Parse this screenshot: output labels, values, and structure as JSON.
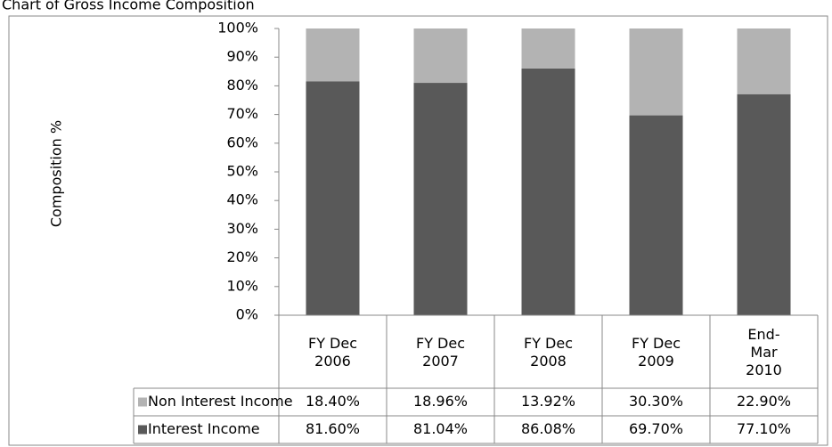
{
  "chart_data": {
    "type": "stacked-bar",
    "title": "Chart of Gross Income Composition",
    "y_label": "Composition %",
    "categories": [
      "FY Dec 2006",
      "FY Dec 2007",
      "FY Dec 2008",
      "FY Dec 2009",
      "End-Mar 2010"
    ],
    "series": [
      {
        "name": "Non Interest Income",
        "color": "#b3b3b3",
        "values": [
          18.4,
          18.96,
          13.92,
          30.3,
          22.9
        ],
        "value_labels": [
          "18.40%",
          "18.96%",
          "13.92%",
          "30.30%",
          "22.90%"
        ]
      },
      {
        "name": "Interest Income",
        "color": "#595959",
        "values": [
          81.6,
          81.04,
          86.08,
          69.7,
          77.1
        ],
        "value_labels": [
          "81.60%",
          "81.04%",
          "86.08%",
          "69.70%",
          "77.10%"
        ]
      }
    ],
    "ylim": [
      0,
      100
    ],
    "yticks": [
      {
        "value": 0,
        "label": "0%"
      },
      {
        "value": 10,
        "label": "10%"
      },
      {
        "value": 20,
        "label": "20%"
      },
      {
        "value": 30,
        "label": "30%"
      },
      {
        "value": 40,
        "label": "40%"
      },
      {
        "value": 50,
        "label": "50%"
      },
      {
        "value": 60,
        "label": "60%"
      },
      {
        "value": 70,
        "label": "70%"
      },
      {
        "value": 80,
        "label": "80%"
      },
      {
        "value": 90,
        "label": "90%"
      },
      {
        "value": 100,
        "label": "100%"
      }
    ]
  }
}
